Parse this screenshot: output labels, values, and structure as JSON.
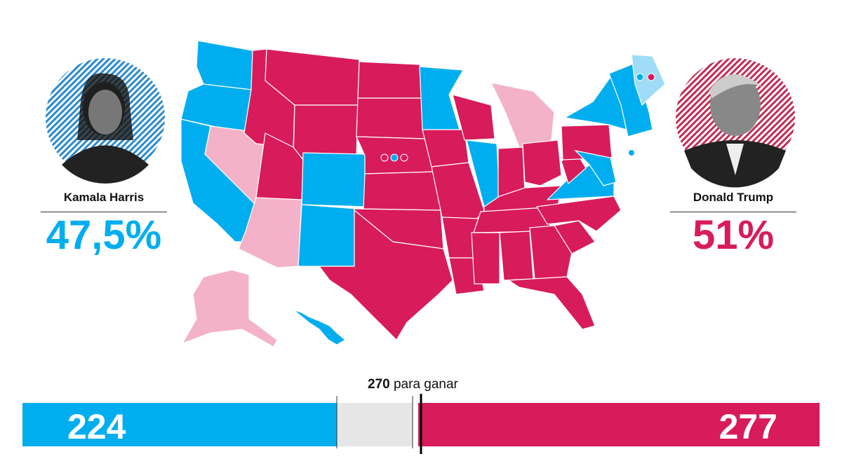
{
  "candidates": [
    {
      "name": "Kamala Harris",
      "percent": "47,5%"
    },
    {
      "name": "Donald Trump",
      "percent": "51%"
    }
  ],
  "electoral_bar": {
    "harris_votes": 224,
    "trump_votes": 277,
    "threshold_number": 270,
    "threshold_text": "para ganar"
  }
}
